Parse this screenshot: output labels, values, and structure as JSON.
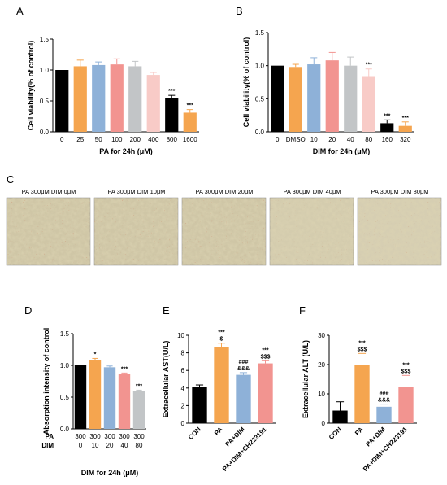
{
  "panel_letters": [
    "A",
    "B",
    "C",
    "D",
    "E",
    "F"
  ],
  "photo_panel": {
    "captions": [
      "PA 300μM DIM 0μM",
      "PA 300μM DIM 10μM",
      "PA 300μM DIM 20μM",
      "PA 300μM DIM 40μM",
      "PA 300μM DIM 80μM"
    ]
  },
  "chart_data": [
    {
      "panel": "A",
      "type": "bar",
      "categories": [
        "0",
        "25",
        "50",
        "100",
        "200",
        "400",
        "800",
        "1600"
      ],
      "values": [
        1.0,
        1.06,
        1.08,
        1.09,
        1.06,
        0.92,
        0.55,
        0.31
      ],
      "errors": [
        0.0,
        0.1,
        0.05,
        0.09,
        0.08,
        0.04,
        0.04,
        0.05
      ],
      "colors": [
        "#000000",
        "#f5a54f",
        "#8eb1d8",
        "#f29490",
        "#c2c5c7",
        "#f8cbc7",
        "#000000",
        "#f5a54f"
      ],
      "annotations": [
        "",
        "",
        "",
        "",
        "",
        "",
        "***",
        "***"
      ],
      "ylim": [
        0,
        1.5
      ],
      "yticks": [
        "0.0",
        "0.5",
        "1.0",
        "1.5"
      ],
      "xlabel": "PA for 24h (μM)",
      "ylabel": "Cell viability(% of control)"
    },
    {
      "panel": "B",
      "type": "bar",
      "categories": [
        "0",
        "DMSO",
        "10",
        "20",
        "40",
        "80",
        "160",
        "320"
      ],
      "values": [
        1.0,
        0.98,
        1.02,
        1.08,
        1.0,
        0.83,
        0.13,
        0.09
      ],
      "errors": [
        0.0,
        0.04,
        0.1,
        0.12,
        0.13,
        0.12,
        0.05,
        0.06
      ],
      "colors": [
        "#000000",
        "#f5a54f",
        "#8eb1d8",
        "#f29490",
        "#c2c5c7",
        "#f8cbc7",
        "#000000",
        "#f5a54f"
      ],
      "annotations": [
        "",
        "",
        "",
        "",
        "",
        "***",
        "***",
        "***"
      ],
      "ylim": [
        0,
        1.5
      ],
      "yticks": [
        "0.0",
        "0.5",
        "1.0",
        "1.5"
      ],
      "xlabel": "DIM for 24h (μM)",
      "ylabel": "Cell viability(% of control)"
    },
    {
      "panel": "D",
      "type": "bar",
      "categories_pa": [
        "300",
        "300",
        "300",
        "300",
        "300"
      ],
      "categories_dim": [
        "0",
        "10",
        "20",
        "40",
        "80"
      ],
      "row_labels": [
        "PA",
        "DIM"
      ],
      "values": [
        1.0,
        1.08,
        0.97,
        0.87,
        0.6
      ],
      "errors": [
        0.0,
        0.03,
        0.02,
        0.01,
        0.01
      ],
      "colors": [
        "#000000",
        "#f5a54f",
        "#8eb1d8",
        "#f29490",
        "#c2c5c7"
      ],
      "annotations": [
        "",
        "*",
        "",
        "***",
        "***"
      ],
      "ylim": [
        0,
        1.5
      ],
      "yticks": [
        "0.0",
        "0.5",
        "1.0",
        "1.5"
      ],
      "xlabel": "DIM for 24h (μM)",
      "ylabel": "Absorption intensity of control"
    },
    {
      "panel": "E",
      "type": "bar",
      "categories": [
        "CON",
        "PA",
        "PA+DIM",
        "PA+DIM+CH223191"
      ],
      "values": [
        4.1,
        8.7,
        5.5,
        6.8
      ],
      "errors": [
        0.25,
        0.4,
        0.25,
        0.3
      ],
      "colors": [
        "#000000",
        "#f5a54f",
        "#8eb1d8",
        "#f29490"
      ],
      "annotations": [
        [],
        [
          "***",
          "$"
        ],
        [
          "###",
          "&&&"
        ],
        [
          "***",
          "$$$"
        ]
      ],
      "ylim": [
        0,
        10
      ],
      "yticks": [
        "0",
        "2",
        "4",
        "6",
        "8",
        "10"
      ],
      "ylabel": "Extracellular AST(U/L)"
    },
    {
      "panel": "F",
      "type": "bar",
      "categories": [
        "CON",
        "PA",
        "PA+DIM",
        "PA+DIM+CH223191"
      ],
      "values": [
        4.3,
        20.0,
        5.6,
        12.3
      ],
      "errors": [
        3.0,
        3.8,
        0.9,
        4.0
      ],
      "colors": [
        "#000000",
        "#f5a54f",
        "#8eb1d8",
        "#f29490"
      ],
      "annotations": [
        [],
        [
          "***",
          "$$$"
        ],
        [
          "###",
          "&&&"
        ],
        [
          "***",
          "$$$"
        ]
      ],
      "ylim": [
        0,
        30
      ],
      "yticks": [
        "0",
        "10",
        "20",
        "30"
      ],
      "ylabel": "Extracellular ALT (U/L)"
    }
  ]
}
